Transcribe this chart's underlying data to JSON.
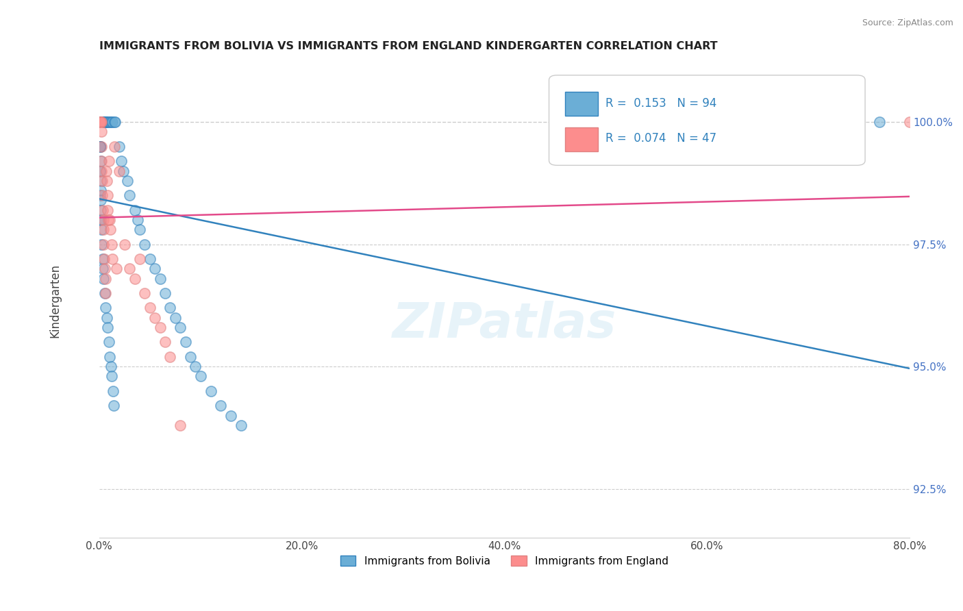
{
  "title": "IMMIGRANTS FROM BOLIVIA VS IMMIGRANTS FROM ENGLAND KINDERGARTEN CORRELATION CHART",
  "source": "Source: ZipAtlas.com",
  "xlabel_bottom": "",
  "ylabel": "Kindergarten",
  "legend_label1": "Immigrants from Bolivia",
  "legend_label2": "Immigrants from England",
  "R1": 0.153,
  "N1": 94,
  "R2": 0.074,
  "N2": 47,
  "color_bolivia": "#6baed6",
  "color_england": "#fc8d8d",
  "color_trendline_bolivia": "#3182bd",
  "color_trendline_england": "#e34a8a",
  "xmin": 0.0,
  "xmax": 80.0,
  "ymin": 91.5,
  "ymax": 101.2,
  "yticks": [
    92.5,
    95.0,
    97.5,
    100.0
  ],
  "xticks": [
    0.0,
    20.0,
    40.0,
    60.0,
    80.0
  ],
  "bolivia_x": [
    0.1,
    0.1,
    0.1,
    0.1,
    0.1,
    0.1,
    0.1,
    0.2,
    0.2,
    0.2,
    0.2,
    0.2,
    0.3,
    0.3,
    0.3,
    0.3,
    0.3,
    0.4,
    0.4,
    0.4,
    0.4,
    0.5,
    0.5,
    0.5,
    0.6,
    0.6,
    0.7,
    0.7,
    0.8,
    0.9,
    1.0,
    1.1,
    1.2,
    1.3,
    1.5,
    1.6,
    0.05,
    0.05,
    0.05,
    0.05,
    0.05,
    0.05,
    0.05,
    0.05,
    0.05,
    0.05,
    0.05,
    0.05,
    0.15,
    0.15,
    0.15,
    0.15,
    0.15,
    0.25,
    0.25,
    0.25,
    0.35,
    0.35,
    0.45,
    0.55,
    0.65,
    0.75,
    0.85,
    0.95,
    1.05,
    1.15,
    1.25,
    1.35,
    1.45,
    2.0,
    2.2,
    2.4,
    2.8,
    3.0,
    3.5,
    3.8,
    4.0,
    4.5,
    5.0,
    5.5,
    6.0,
    6.5,
    7.0,
    7.5,
    8.0,
    8.5,
    9.0,
    9.5,
    10.0,
    11.0,
    12.0,
    13.0,
    14.0,
    77.0
  ],
  "bolivia_y": [
    100.0,
    100.0,
    100.0,
    100.0,
    100.0,
    100.0,
    100.0,
    100.0,
    100.0,
    100.0,
    100.0,
    100.0,
    100.0,
    100.0,
    100.0,
    100.0,
    100.0,
    100.0,
    100.0,
    100.0,
    100.0,
    100.0,
    100.0,
    100.0,
    100.0,
    100.0,
    100.0,
    100.0,
    100.0,
    100.0,
    100.0,
    100.0,
    100.0,
    100.0,
    100.0,
    100.0,
    99.5,
    99.5,
    99.5,
    99.5,
    99.5,
    99.5,
    99.5,
    99.5,
    99.0,
    99.0,
    98.5,
    98.0,
    99.2,
    98.8,
    98.6,
    98.4,
    98.2,
    98.0,
    97.8,
    97.5,
    97.2,
    97.0,
    96.8,
    96.5,
    96.2,
    96.0,
    95.8,
    95.5,
    95.2,
    95.0,
    94.8,
    94.5,
    94.2,
    99.5,
    99.2,
    99.0,
    98.8,
    98.5,
    98.2,
    98.0,
    97.8,
    97.5,
    97.2,
    97.0,
    96.8,
    96.5,
    96.2,
    96.0,
    95.8,
    95.5,
    95.2,
    95.0,
    94.8,
    94.5,
    94.2,
    94.0,
    93.8,
    100.0
  ],
  "england_x": [
    0.1,
    0.1,
    0.1,
    0.1,
    0.15,
    0.15,
    0.15,
    0.2,
    0.2,
    0.2,
    0.25,
    0.25,
    0.3,
    0.3,
    0.35,
    0.4,
    0.4,
    0.45,
    0.5,
    0.55,
    0.6,
    0.65,
    0.7,
    0.75,
    0.8,
    0.85,
    0.9,
    0.95,
    1.0,
    1.1,
    1.2,
    1.3,
    1.5,
    1.7,
    2.0,
    2.5,
    3.0,
    3.5,
    4.0,
    4.5,
    5.0,
    5.5,
    6.0,
    6.5,
    7.0,
    8.0,
    80.0
  ],
  "england_y": [
    100.0,
    100.0,
    100.0,
    100.0,
    100.0,
    100.0,
    100.0,
    100.0,
    99.8,
    99.5,
    99.2,
    99.0,
    98.8,
    98.5,
    98.2,
    98.0,
    97.8,
    97.5,
    97.2,
    97.0,
    96.8,
    96.5,
    99.0,
    98.8,
    98.5,
    98.2,
    98.0,
    99.2,
    98.0,
    97.8,
    97.5,
    97.2,
    99.5,
    97.0,
    99.0,
    97.5,
    97.0,
    96.8,
    97.2,
    96.5,
    96.2,
    96.0,
    95.8,
    95.5,
    95.2,
    93.8,
    100.0
  ],
  "watermark": "ZIPatlas",
  "background_color": "#ffffff",
  "grid_color": "#cccccc",
  "dashed_line_y": 100.0
}
